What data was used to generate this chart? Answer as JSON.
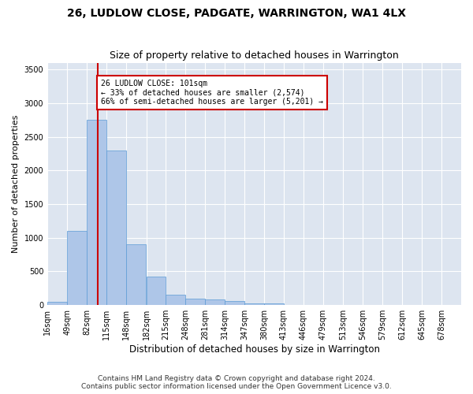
{
  "title1": "26, LUDLOW CLOSE, PADGATE, WARRINGTON, WA1 4LX",
  "title2": "Size of property relative to detached houses in Warrington",
  "xlabel": "Distribution of detached houses by size in Warrington",
  "ylabel": "Number of detached properties",
  "bar_color": "#aec6e8",
  "bar_edge_color": "#5b9bd5",
  "background_color": "#dde5f0",
  "grid_color": "#ffffff",
  "vline_color": "#cc0000",
  "annotation_text": "26 LUDLOW CLOSE: 101sqm\n← 33% of detached houses are smaller (2,574)\n66% of semi-detached houses are larger (5,201) →",
  "annotation_box_color": "#ffffff",
  "annotation_box_edge": "#cc0000",
  "bins": [
    16,
    49,
    82,
    115,
    148,
    182,
    215,
    248,
    281,
    314,
    347,
    380,
    413,
    446,
    479,
    513,
    546,
    579,
    612,
    645,
    678
  ],
  "bin_values": [
    50,
    1100,
    2750,
    2300,
    900,
    420,
    160,
    100,
    80,
    60,
    30,
    20,
    5,
    2,
    2,
    1,
    1,
    0,
    0,
    0,
    0
  ],
  "ylim": [
    0,
    3600
  ],
  "yticks": [
    0,
    500,
    1000,
    1500,
    2000,
    2500,
    3000,
    3500
  ],
  "footer1": "Contains HM Land Registry data © Crown copyright and database right 2024.",
  "footer2": "Contains public sector information licensed under the Open Government Licence v3.0.",
  "title1_fontsize": 10,
  "title2_fontsize": 9,
  "xlabel_fontsize": 8.5,
  "ylabel_fontsize": 8,
  "tick_fontsize": 7,
  "footer_fontsize": 6.5,
  "vline_x": 101
}
